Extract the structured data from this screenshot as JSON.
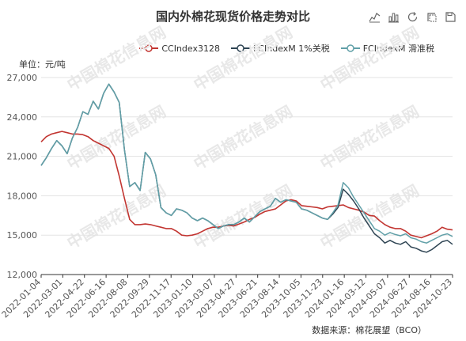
{
  "title": "国内外棉花现货价格走势对比",
  "unit_label": "单位：元/吨",
  "source_label": "数据来源：棉花展望（BCO）",
  "watermark_text": "中国棉花信息网",
  "toolbox": [
    "line-chart-icon",
    "bar-chart-icon",
    "refresh-icon",
    "restore-icon",
    "save-icon"
  ],
  "colors": {
    "CCIndex3128": "#c23531",
    "FCIndexM_1pct": "#2f4554",
    "FCIndexM_sliding": "#61a0a8"
  },
  "chart_data": {
    "type": "line",
    "title": "国内外棉花现货价格走势对比",
    "ylabel": "元/吨",
    "ylim": [
      12000,
      27000
    ],
    "yticks": [
      12000,
      15000,
      18000,
      21000,
      24000,
      27000
    ],
    "ytick_labels": [
      "12,000",
      "15,000",
      "18,000",
      "21,000",
      "24,000",
      "27,000"
    ],
    "x_tick_labels": [
      "2022-01-04",
      "2022-03-01",
      "2022-04-22",
      "2022-06-16",
      "2022-08-08",
      "2022-09-29",
      "2022-11-17",
      "2023-01-10",
      "2023-03-07",
      "2023-04-27",
      "2023-06-21",
      "2023-08-14",
      "2023-10-05",
      "2023-11-23",
      "2024-01-16",
      "2024-03-12",
      "2024-05-07",
      "2024-06-27",
      "2024-08-16",
      "2024-10-23"
    ],
    "grid": true,
    "legend_position": "top-right",
    "series": [
      {
        "name": "CCIndex3128",
        "values": [
          22100,
          22500,
          22700,
          22800,
          22900,
          22800,
          22700,
          22700,
          22650,
          22500,
          22200,
          22000,
          21800,
          21600,
          21000,
          19500,
          17800,
          16200,
          15800,
          15800,
          15850,
          15800,
          15700,
          15600,
          15500,
          15500,
          15300,
          15000,
          14950,
          15000,
          15100,
          15300,
          15500,
          15600,
          15600,
          15700,
          15750,
          15700,
          15850,
          16000,
          16200,
          16350,
          16600,
          16800,
          16900,
          17000,
          17300,
          17600,
          17700,
          17600,
          17250,
          17200,
          17150,
          17100,
          17000,
          17150,
          17200,
          17250,
          17300,
          17100,
          17000,
          16900,
          16750,
          16500,
          16450,
          16100,
          15800,
          15600,
          15500,
          15500,
          15300,
          15000,
          14900,
          14800,
          14950,
          15100,
          15300,
          15600,
          15450,
          15400
        ]
      },
      {
        "name": "FCIndexM 1%关税",
        "values": [
          20300,
          20900,
          21600,
          22200,
          21800,
          21200,
          22400,
          23200,
          24400,
          24200,
          25200,
          24600,
          25800,
          26500,
          25900,
          25100,
          21500,
          18700,
          19000,
          18400,
          21300,
          20800,
          19600,
          17100,
          16700,
          16500,
          17000,
          16900,
          16700,
          16300,
          16100,
          16300,
          16100,
          15800,
          15500,
          15700,
          15800,
          15800,
          16000,
          16300,
          16000,
          16400,
          16800,
          17000,
          17200,
          17800,
          17500,
          17700,
          17600,
          17500,
          17000,
          16900,
          16700,
          16500,
          16300,
          16200,
          16600,
          17100,
          18500,
          18100,
          17600,
          17000,
          16300,
          15700,
          15100,
          14800,
          14400,
          14600,
          14400,
          14300,
          14500,
          14100,
          14000,
          13800,
          13700,
          13900,
          14200,
          14500,
          14600,
          14300
        ]
      },
      {
        "name": "FCIndexM 滑准税",
        "values": [
          20300,
          20900,
          21600,
          22200,
          21800,
          21200,
          22400,
          23200,
          24400,
          24200,
          25200,
          24600,
          25800,
          26500,
          25900,
          25100,
          21500,
          18700,
          19000,
          18400,
          21300,
          20800,
          19600,
          17100,
          16700,
          16500,
          17000,
          16900,
          16700,
          16300,
          16100,
          16300,
          16100,
          15800,
          15500,
          15700,
          15800,
          15800,
          16000,
          16300,
          16000,
          16400,
          16800,
          17000,
          17200,
          17800,
          17500,
          17700,
          17600,
          17500,
          17000,
          16900,
          16700,
          16500,
          16300,
          16200,
          16700,
          17300,
          19000,
          18600,
          17900,
          17300,
          16700,
          16100,
          15500,
          15300,
          15000,
          15200,
          15050,
          14950,
          15100,
          14800,
          14700,
          14500,
          14400,
          14600,
          14800,
          15000,
          15100,
          14900
        ]
      }
    ]
  }
}
